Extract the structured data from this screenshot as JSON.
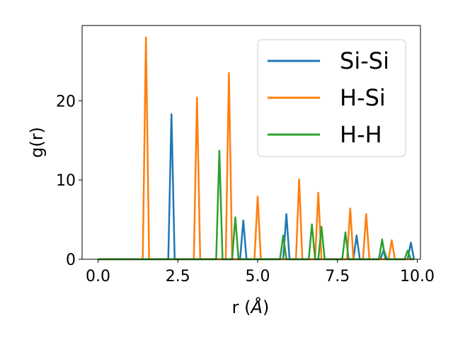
{
  "chart_data": {
    "type": "line",
    "title": "",
    "xlabel_main": "r (",
    "xlabel_unit": "Å",
    "xlabel_close": ")",
    "ylabel": "g(r)",
    "xlim": [
      -0.5,
      10.1
    ],
    "ylim": [
      0,
      29.5
    ],
    "xticks": [
      0.0,
      2.5,
      5.0,
      7.5,
      10.0
    ],
    "xtick_labels": [
      "0.0",
      "2.5",
      "5.0",
      "7.5",
      "10.0"
    ],
    "yticks": [
      0,
      10,
      20
    ],
    "ytick_labels": [
      "0",
      "10",
      "20"
    ],
    "grid": false,
    "legend_position": "top-right",
    "peak_half_width": 0.1,
    "x_range": [
      0.0,
      9.9
    ],
    "series": [
      {
        "name": "Si-Si",
        "color": "#1f77b4",
        "peaks": [
          [
            2.3,
            18.3
          ],
          [
            4.55,
            4.9
          ],
          [
            5.9,
            5.7
          ],
          [
            8.1,
            3.0
          ],
          [
            8.95,
            1.2
          ],
          [
            9.8,
            2.1
          ]
        ]
      },
      {
        "name": "H-Si",
        "color": "#ff7f0e",
        "peaks": [
          [
            1.5,
            28.0
          ],
          [
            3.1,
            20.4
          ],
          [
            4.1,
            23.5
          ],
          [
            5.0,
            7.9
          ],
          [
            6.3,
            10.1
          ],
          [
            6.9,
            8.4
          ],
          [
            7.9,
            6.4
          ],
          [
            8.4,
            5.7
          ],
          [
            9.2,
            2.4
          ]
        ]
      },
      {
        "name": "H-H",
        "color": "#2ca02c",
        "peaks": [
          [
            3.8,
            13.7
          ],
          [
            4.3,
            5.3
          ],
          [
            5.8,
            3.0
          ],
          [
            6.7,
            4.4
          ],
          [
            7.0,
            4.1
          ],
          [
            7.75,
            3.4
          ],
          [
            8.9,
            2.5
          ],
          [
            9.7,
            1.1
          ]
        ]
      }
    ]
  }
}
